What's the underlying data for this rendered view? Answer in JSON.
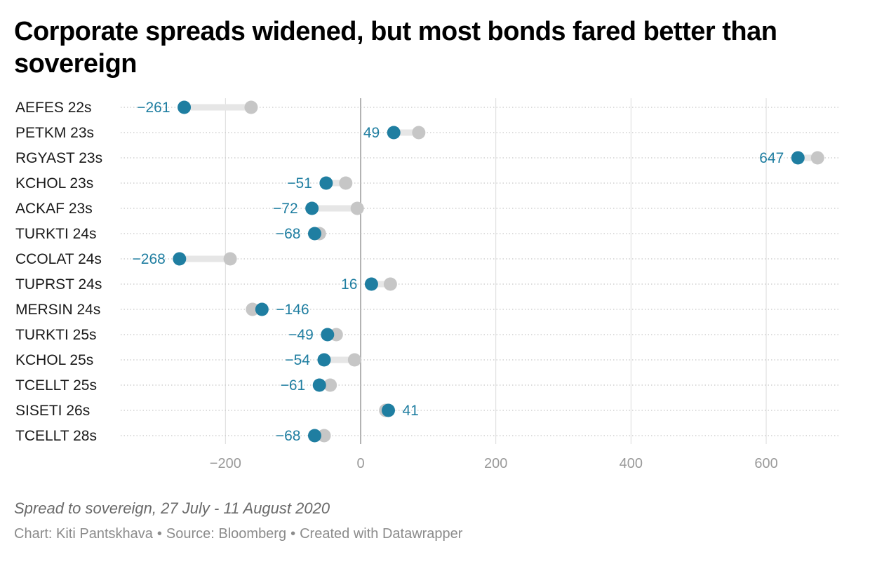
{
  "chart_data": {
    "type": "dot-range",
    "title": "Corporate spreads widened, but most bonds fared better than sovereign",
    "notes": "Spread to sovereign, 27 July - 11 August 2020",
    "credits": {
      "chart": "Chart: Kiti Pantskhava",
      "source": "Source: Bloomberg",
      "created": "Created with Datawrapper"
    },
    "colors": {
      "end": "#1f7ea1",
      "start": "#c6c6c6",
      "range": "#e6e6e6",
      "label": "#1f7ea1"
    },
    "xlim": [
      -355,
      710
    ],
    "xticks": [
      -200,
      0,
      200,
      400,
      600
    ],
    "xtick_labels": [
      "−200",
      "0",
      "200",
      "400",
      "600"
    ],
    "grid": true,
    "rows": [
      {
        "bond": "AEFES 22s",
        "start": -162,
        "end": -261,
        "label": "−261"
      },
      {
        "bond": "PETKM 23s",
        "start": 86,
        "end": 49,
        "label": "49"
      },
      {
        "bond": "RGYAST 23s",
        "start": 676,
        "end": 647,
        "label": "647"
      },
      {
        "bond": "KCHOL 23s",
        "start": -22,
        "end": -51,
        "label": "−51"
      },
      {
        "bond": "ACKAF 23s",
        "start": -5,
        "end": -72,
        "label": "−72"
      },
      {
        "bond": "TURKTI 24s",
        "start": -61,
        "end": -68,
        "label": "−68"
      },
      {
        "bond": "CCOLAT 24s",
        "start": -193,
        "end": -268,
        "label": "−268"
      },
      {
        "bond": "TUPRST 24s",
        "start": 44,
        "end": 16,
        "label": "16"
      },
      {
        "bond": "MERSIN 24s",
        "start": -160,
        "end": -146,
        "label": "−146"
      },
      {
        "bond": "TURKTI 25s",
        "start": -36,
        "end": -49,
        "label": "−49"
      },
      {
        "bond": "KCHOL 25s",
        "start": -9,
        "end": -54,
        "label": "−54"
      },
      {
        "bond": "TCELLT 25s",
        "start": -45,
        "end": -61,
        "label": "−61"
      },
      {
        "bond": "SISETI 26s",
        "start": 37,
        "end": 41,
        "label": "41"
      },
      {
        "bond": "TCELLT 28s",
        "start": -54,
        "end": -68,
        "label": "−68"
      }
    ]
  }
}
